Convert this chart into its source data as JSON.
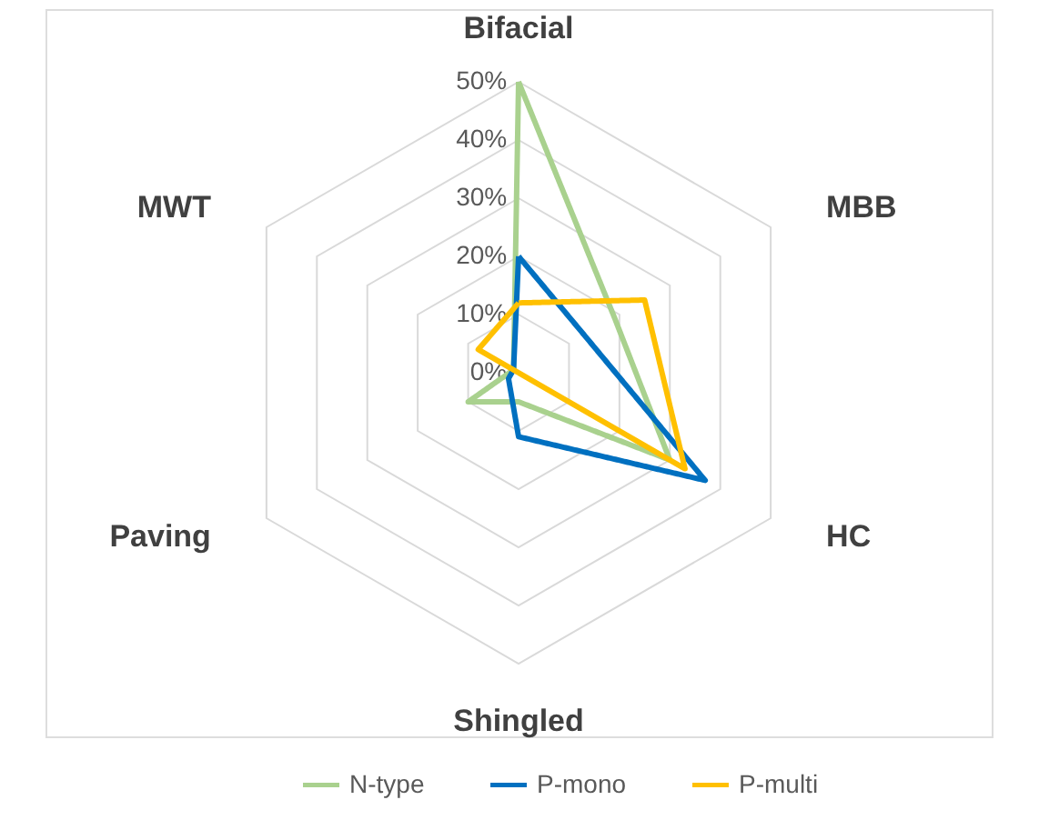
{
  "chart_data": {
    "type": "radar",
    "categories": [
      "Bifacial",
      "MBB",
      "HC",
      "Shingled",
      "Paving",
      "MWT"
    ],
    "series": [
      {
        "name": "N-type",
        "color": "#a9d18e",
        "values": [
          50,
          19,
          30,
          5,
          10,
          1
        ]
      },
      {
        "name": "P-mono",
        "color": "#0070c0",
        "values": [
          20,
          13,
          37,
          11,
          2,
          1
        ]
      },
      {
        "name": "P-multi",
        "color": "#ffc000",
        "values": [
          12,
          25,
          33,
          0,
          0,
          8
        ]
      }
    ],
    "ylim": [
      0,
      50
    ],
    "yticks": [
      {
        "value": 0,
        "label": "0%"
      },
      {
        "value": 10,
        "label": "10%"
      },
      {
        "value": 20,
        "label": "20%"
      },
      {
        "value": 30,
        "label": "30%"
      },
      {
        "value": 40,
        "label": "40%"
      },
      {
        "value": 50,
        "label": "50%"
      }
    ],
    "grid": true,
    "legend": "bottom",
    "marker": "none",
    "line_style": "solid"
  }
}
